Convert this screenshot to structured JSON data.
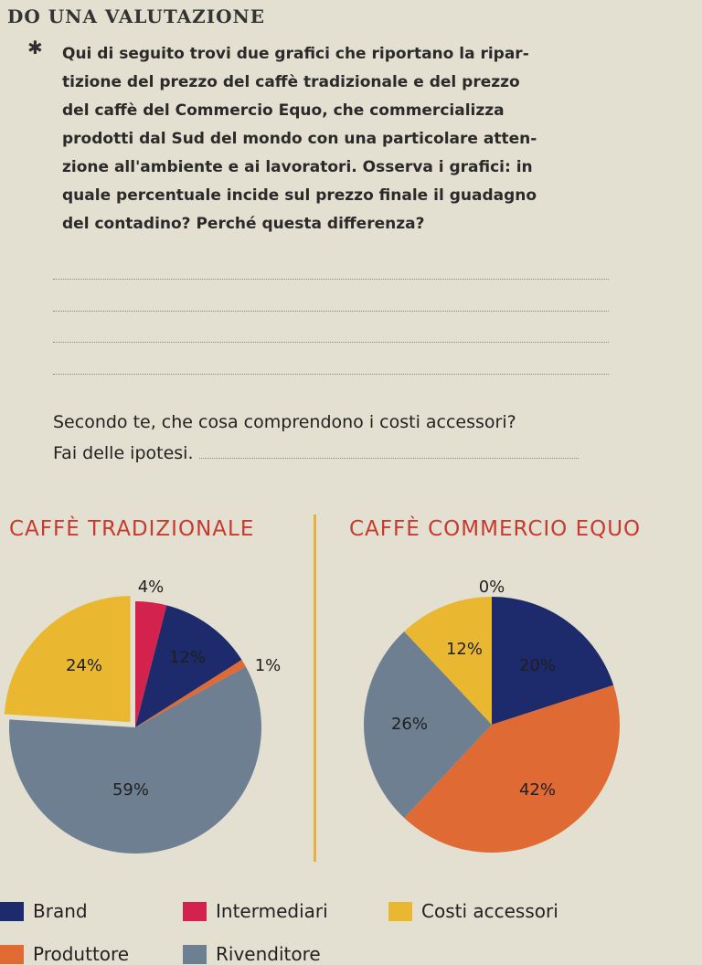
{
  "section": {
    "title": "DO UNA VALUTAZIONE"
  },
  "question1": {
    "lines": [
      "Qui di seguito trovi due grafici che riportano la ripar-",
      "tizione del prezzo del caffè tradizionale e del prezzo",
      "del caffè del Commercio Equo, che commercializza",
      "prodotti dal Sud del mondo con una particolare atten-",
      "zione all'ambiente e ai lavoratori. Osserva i grafici: in",
      "quale percentuale incide sul prezzo finale il guadagno",
      "del contadino? Perché questa differenza?"
    ]
  },
  "question2": {
    "line1": "Secondo te, che cosa comprendono i costi accessori?",
    "line2": "Fai delle ipotesi."
  },
  "colors": {
    "Brand": "#1d2a6b",
    "Intermediari": "#d3224e",
    "Costi accessori": "#e9b730",
    "Produttore": "#e06a33",
    "Rivenditore": "#6f7f92"
  },
  "chart_data": [
    {
      "type": "pie",
      "title": "CAFFÈ TRADIZIONALE",
      "slices": [
        {
          "name": "Intermediari",
          "value": 4,
          "label": "4%"
        },
        {
          "name": "Brand",
          "value": 12,
          "label": "12%"
        },
        {
          "name": "Produttore",
          "value": 1,
          "label": "1%"
        },
        {
          "name": "Rivenditore",
          "value": 59,
          "label": "59%"
        },
        {
          "name": "Costi accessori",
          "value": 24,
          "label": "24%"
        }
      ]
    },
    {
      "type": "pie",
      "title": "CAFFÈ COMMERCIO EQUO",
      "slices": [
        {
          "name": "Intermediari",
          "value": 0,
          "label": "0%"
        },
        {
          "name": "Brand",
          "value": 20,
          "label": "20%"
        },
        {
          "name": "Produttore",
          "value": 42,
          "label": "42%"
        },
        {
          "name": "Rivenditore",
          "value": 26,
          "label": "26%"
        },
        {
          "name": "Costi accessori",
          "value": 12,
          "label": "12%"
        }
      ]
    }
  ],
  "legend": [
    "Brand",
    "Intermediari",
    "Costi accessori",
    "Produttore",
    "Rivenditore"
  ]
}
